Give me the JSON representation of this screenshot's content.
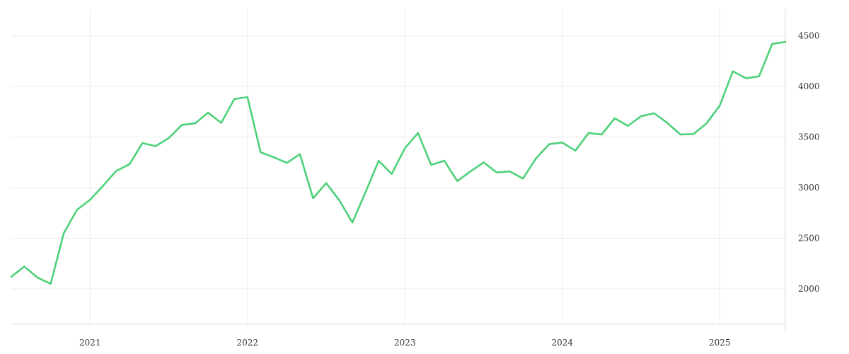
{
  "chart_data": {
    "type": "line",
    "title": "",
    "xlabel": "",
    "ylabel": "",
    "x_ticks": [
      "2021",
      "2022",
      "2023",
      "2024",
      "2025"
    ],
    "y_ticks": [
      2000,
      2500,
      3000,
      3500,
      4000,
      4500
    ],
    "xlim": [
      "2020-07",
      "2025-06"
    ],
    "ylim": [
      1650,
      4770
    ],
    "y_axis_side": "right",
    "grid": true,
    "legend": "none",
    "colors": {
      "line": "#4fd17a",
      "grid": "#ececec",
      "text": "#333333"
    },
    "series": [
      {
        "x": [
          "2020-07",
          "2020-08",
          "2020-09",
          "2020-10",
          "2020-11",
          "2020-12",
          "2021-01",
          "2021-02",
          "2021-03",
          "2021-04",
          "2021-05",
          "2021-06",
          "2021-07",
          "2021-08",
          "2021-09",
          "2021-10",
          "2021-11",
          "2021-12",
          "2022-01",
          "2022-02",
          "2022-03",
          "2022-04",
          "2022-05",
          "2022-06",
          "2022-07",
          "2022-08",
          "2022-09",
          "2022-10",
          "2022-11",
          "2022-12",
          "2023-01",
          "2023-02",
          "2023-03",
          "2023-04",
          "2023-05",
          "2023-06",
          "2023-07",
          "2023-08",
          "2023-09",
          "2023-10",
          "2023-11",
          "2023-12",
          "2024-01",
          "2024-02",
          "2024-03",
          "2024-04",
          "2024-05",
          "2024-06",
          "2024-07",
          "2024-08",
          "2024-09",
          "2024-10",
          "2024-11",
          "2024-12",
          "2025-01",
          "2025-02",
          "2025-03",
          "2025-04",
          "2025-05",
          "2025-06"
        ],
        "values": [
          2120,
          2220,
          2110,
          2050,
          2550,
          2780,
          2880,
          3020,
          3165,
          3230,
          3440,
          3410,
          3490,
          3620,
          3635,
          3740,
          3640,
          3875,
          3895,
          3350,
          3300,
          3245,
          3330,
          2895,
          3045,
          2875,
          2655,
          2955,
          3265,
          3135,
          3390,
          3540,
          3225,
          3265,
          3065,
          3160,
          3250,
          3150,
          3160,
          3090,
          3290,
          3430,
          3445,
          3365,
          3540,
          3525,
          3685,
          3610,
          3705,
          3735,
          3640,
          3525,
          3530,
          3635,
          3810,
          4150,
          4080,
          4100,
          4420,
          4440
        ]
      }
    ]
  }
}
